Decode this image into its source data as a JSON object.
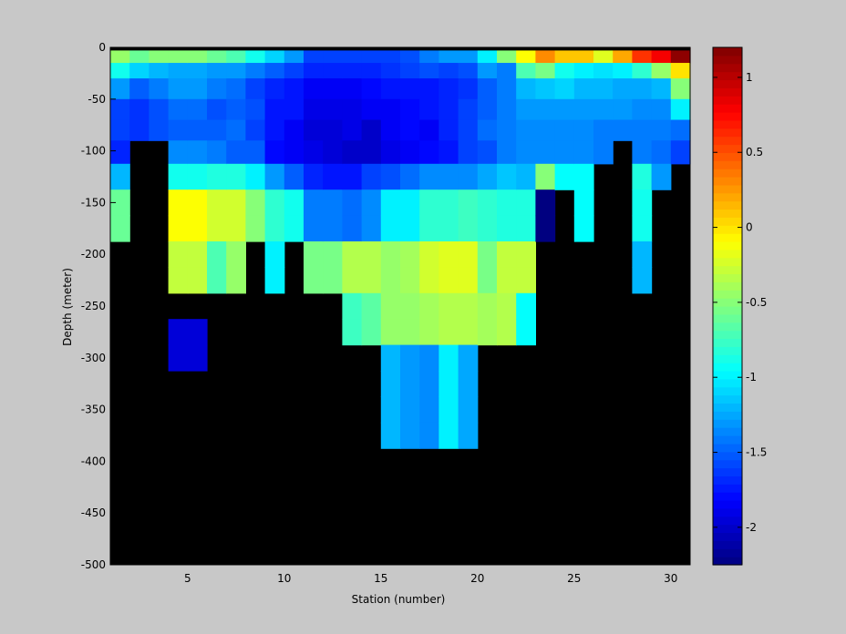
{
  "chart_data": {
    "type": "heatmap",
    "title": "",
    "xlabel": "Station (number)",
    "ylabel": "Depth (meter)",
    "xlim": [
      1,
      31
    ],
    "ylim": [
      -500,
      0
    ],
    "x_ticks": [
      5,
      10,
      15,
      20,
      25,
      30
    ],
    "y_ticks": [
      0,
      -50,
      -100,
      -150,
      -200,
      -250,
      -300,
      -350,
      -400,
      -450,
      -500
    ],
    "colorbar": {
      "colormap": "jet",
      "clim": [
        -2.25,
        1.2
      ],
      "ticks": [
        1,
        0.5,
        0,
        -0.5,
        -1,
        -1.5,
        -2
      ],
      "tick_labels": [
        "1",
        "0.5",
        "0",
        "-0.5",
        "-1",
        "-1.5",
        "-2"
      ]
    },
    "no_data_color": "#000000",
    "top_band_color": "#000000",
    "stations": [
      1,
      2,
      3,
      4,
      5,
      6,
      7,
      8,
      9,
      10,
      11,
      12,
      13,
      14,
      15,
      16,
      17,
      18,
      19,
      20,
      21,
      22,
      23,
      24,
      25,
      26,
      27,
      28,
      29,
      30
    ],
    "depth_levels": [
      -10,
      -20,
      -40,
      -60,
      -80,
      -100,
      -125,
      -150,
      -175,
      -200,
      -225,
      -250,
      -275,
      -300,
      -325,
      -350,
      -375,
      -400,
      -425,
      -450,
      -475,
      -500
    ],
    "values_by_station": [
      [
        -0.45,
        -0.9,
        -1.3,
        -1.6,
        -1.6,
        -1.7,
        -1.2,
        -0.6,
        -0.6,
        null,
        null,
        null,
        null,
        null,
        null,
        null,
        null,
        null,
        null,
        null,
        null,
        null
      ],
      [
        -0.6,
        -1.1,
        -1.5,
        -1.65,
        -1.65,
        null,
        null,
        null,
        null,
        null,
        null,
        null,
        null,
        null,
        null,
        null,
        null,
        null,
        null,
        null,
        null,
        null
      ],
      [
        -0.5,
        -1.2,
        -1.4,
        -1.55,
        -1.55,
        null,
        null,
        null,
        null,
        null,
        null,
        null,
        null,
        null,
        null,
        null,
        null,
        null,
        null,
        null,
        null,
        null
      ],
      [
        -0.5,
        -1.25,
        -1.3,
        -1.45,
        -1.5,
        -1.35,
        -0.9,
        -0.1,
        -0.1,
        -0.3,
        -0.3,
        null,
        -1.95,
        -1.95,
        null,
        null,
        null,
        null,
        null,
        null,
        null,
        null
      ],
      [
        -0.5,
        -1.25,
        -1.3,
        -1.45,
        -1.5,
        -1.35,
        -0.9,
        -0.1,
        -0.1,
        -0.3,
        -0.3,
        null,
        -1.95,
        -1.95,
        null,
        null,
        null,
        null,
        null,
        null,
        null,
        null
      ],
      [
        -0.6,
        -1.3,
        -1.4,
        -1.55,
        -1.5,
        -1.4,
        -0.85,
        -0.25,
        -0.25,
        -0.7,
        -0.7,
        null,
        null,
        null,
        null,
        null,
        null,
        null,
        null,
        null,
        null,
        null
      ],
      [
        -0.7,
        -1.3,
        -1.45,
        -1.5,
        -1.45,
        -1.5,
        -0.85,
        -0.25,
        -0.25,
        -0.45,
        -0.45,
        null,
        null,
        null,
        null,
        null,
        null,
        null,
        null,
        null,
        null,
        null
      ],
      [
        -0.9,
        -1.4,
        -1.6,
        -1.55,
        -1.6,
        -1.5,
        -1.0,
        -0.5,
        -0.5,
        null,
        null,
        null,
        null,
        null,
        null,
        null,
        null,
        null,
        null,
        null,
        null,
        null
      ],
      [
        -1.1,
        -1.5,
        -1.7,
        -1.75,
        -1.75,
        -1.8,
        -1.3,
        -0.8,
        -0.8,
        -1.0,
        -1.0,
        null,
        null,
        null,
        null,
        null,
        null,
        null,
        null,
        null,
        null,
        null
      ],
      [
        -1.3,
        -1.6,
        -1.75,
        -1.75,
        -1.85,
        -1.85,
        -1.5,
        -0.9,
        -0.9,
        null,
        null,
        null,
        null,
        null,
        null,
        null,
        null,
        null,
        null,
        null,
        null,
        null
      ],
      [
        -1.6,
        -1.7,
        -1.85,
        -1.9,
        -1.95,
        -1.9,
        -1.7,
        -1.4,
        -1.4,
        -0.55,
        -0.55,
        null,
        null,
        null,
        null,
        null,
        null,
        null,
        null,
        null,
        null,
        null
      ],
      [
        -1.6,
        -1.7,
        -1.85,
        -1.9,
        -1.95,
        -1.95,
        -1.75,
        -1.4,
        -1.4,
        -0.55,
        -0.55,
        null,
        null,
        null,
        null,
        null,
        null,
        null,
        null,
        null,
        null,
        null
      ],
      [
        -1.6,
        -1.7,
        -1.85,
        -1.9,
        -1.9,
        -2.0,
        -1.75,
        -1.45,
        -1.45,
        -0.35,
        -0.35,
        -0.75,
        -0.75,
        null,
        null,
        null,
        null,
        null,
        null,
        null,
        null,
        null
      ],
      [
        -1.6,
        -1.7,
        -1.8,
        -1.85,
        -2.0,
        -2.0,
        -1.6,
        -1.35,
        -1.35,
        -0.35,
        -0.35,
        -0.65,
        -0.65,
        null,
        null,
        null,
        null,
        null,
        null,
        null,
        null,
        null
      ],
      [
        -1.6,
        -1.65,
        -1.75,
        -1.85,
        -1.85,
        -1.9,
        -1.55,
        -1.0,
        -1.0,
        -0.45,
        -0.45,
        -0.45,
        -0.45,
        -1.2,
        -1.2,
        -1.2,
        -1.2,
        null,
        null,
        null,
        null,
        null
      ],
      [
        -1.55,
        -1.6,
        -1.75,
        -1.8,
        -1.8,
        -1.85,
        -1.45,
        -1.0,
        -1.0,
        -0.4,
        -0.4,
        -0.45,
        -0.45,
        -1.3,
        -1.3,
        -1.3,
        -1.3,
        null,
        null,
        null,
        null,
        null
      ],
      [
        -1.4,
        -1.55,
        -1.75,
        -1.75,
        -1.85,
        -1.8,
        -1.35,
        -0.8,
        -0.8,
        -0.25,
        -0.25,
        -0.4,
        -0.4,
        -1.35,
        -1.35,
        -1.35,
        -1.35,
        null,
        null,
        null,
        null,
        null
      ],
      [
        -1.3,
        -1.6,
        -1.7,
        -1.7,
        -1.7,
        -1.75,
        -1.35,
        -0.8,
        -0.8,
        -0.2,
        -0.2,
        -0.35,
        -0.35,
        -1.0,
        -1.0,
        -1.0,
        -1.0,
        null,
        null,
        null,
        null,
        null
      ],
      [
        -1.3,
        -1.55,
        -1.65,
        -1.6,
        -1.6,
        -1.6,
        -1.35,
        -0.75,
        -0.75,
        -0.2,
        -0.2,
        -0.35,
        -0.35,
        -1.25,
        -1.25,
        -1.25,
        -1.25,
        null,
        null,
        null,
        null,
        null
      ],
      [
        -1.0,
        -1.3,
        -1.5,
        -1.5,
        -1.45,
        -1.55,
        -1.25,
        -0.8,
        -0.8,
        -0.55,
        -0.55,
        -0.4,
        -0.4,
        null,
        null,
        null,
        null,
        null,
        null,
        null,
        null,
        null
      ],
      [
        -0.5,
        -1.4,
        -1.4,
        -1.4,
        -1.4,
        -1.4,
        -1.15,
        -0.85,
        -0.85,
        -0.3,
        -0.3,
        -0.35,
        -0.35,
        null,
        null,
        null,
        null,
        null,
        null,
        null,
        null,
        null
      ],
      [
        -0.1,
        -0.7,
        -1.2,
        -1.3,
        -1.35,
        -1.35,
        -1.2,
        -0.85,
        -0.85,
        -0.3,
        -0.3,
        -0.95,
        -0.95,
        null,
        null,
        null,
        null,
        null,
        null,
        null,
        null,
        null
      ],
      [
        0.3,
        -0.55,
        -1.15,
        -1.3,
        -1.35,
        -1.35,
        -0.5,
        -2.25,
        -2.25,
        null,
        null,
        null,
        null,
        null,
        null,
        null,
        null,
        null,
        null,
        null,
        null,
        null
      ],
      [
        0.1,
        -0.9,
        -1.1,
        -1.3,
        -1.35,
        -1.35,
        -0.95,
        null,
        null,
        null,
        null,
        null,
        null,
        null,
        null,
        null,
        null,
        null,
        null,
        null,
        null,
        null
      ],
      [
        0.1,
        -1.0,
        -1.2,
        -1.3,
        -1.35,
        -1.35,
        -0.95,
        -0.95,
        -0.95,
        null,
        null,
        null,
        null,
        null,
        null,
        null,
        null,
        null,
        null,
        null,
        null,
        null
      ],
      [
        -0.2,
        -1.05,
        -1.2,
        -1.3,
        -1.4,
        -1.4,
        null,
        null,
        null,
        null,
        null,
        null,
        null,
        null,
        null,
        null,
        null,
        null,
        null,
        null,
        null,
        null
      ],
      [
        0.2,
        -1.0,
        -1.25,
        -1.3,
        -1.4,
        null,
        null,
        null,
        null,
        null,
        null,
        null,
        null,
        null,
        null,
        null,
        null,
        null,
        null,
        null,
        null,
        null
      ],
      [
        0.6,
        -0.8,
        -1.25,
        -1.35,
        -1.4,
        -1.4,
        -0.85,
        -0.9,
        -0.9,
        -1.2,
        -1.2,
        null,
        null,
        null,
        null,
        null,
        null,
        null,
        null,
        null,
        null,
        null
      ],
      [
        0.8,
        -0.45,
        -1.2,
        -1.35,
        -1.4,
        -1.45,
        -1.3,
        null,
        null,
        null,
        null,
        null,
        null,
        null,
        null,
        null,
        null,
        null,
        null,
        null,
        null,
        null
      ],
      [
        1.15,
        0.0,
        -0.5,
        -1.0,
        -1.45,
        -1.6,
        null,
        null,
        null,
        null,
        null,
        null,
        null,
        null,
        null,
        null,
        null,
        null,
        null,
        null,
        null,
        null
      ]
    ]
  }
}
